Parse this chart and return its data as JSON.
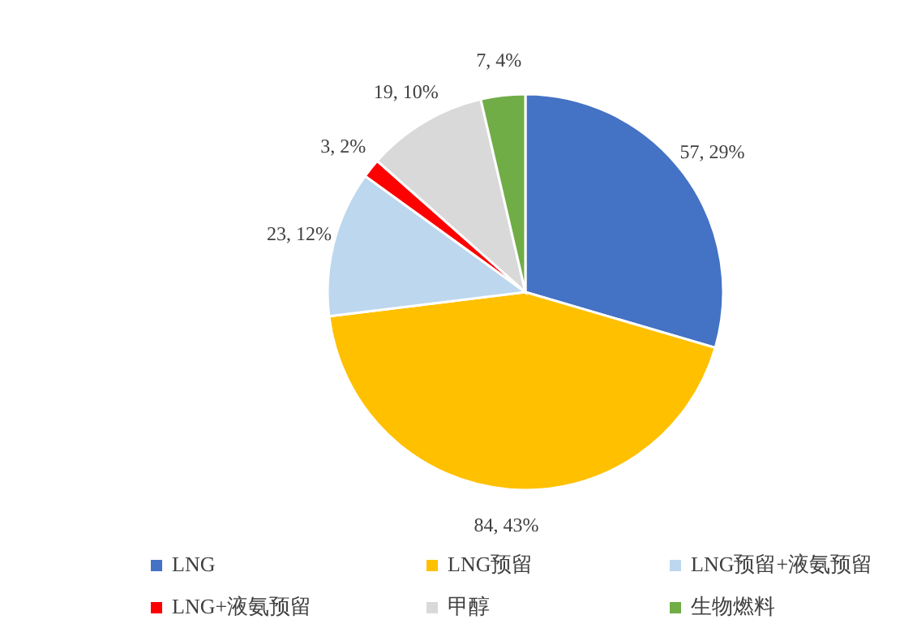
{
  "chart_data": {
    "type": "pie",
    "categories": [
      "LNG",
      "LNG预留",
      "LNG预留+液氨预留",
      "LNG+液氨预留",
      "甲醇",
      "生物燃料"
    ],
    "values": [
      57,
      84,
      23,
      3,
      19,
      7
    ],
    "colors": [
      "#4472c4",
      "#ffc000",
      "#bdd7ee",
      "#ff0000",
      "#d9d9d9",
      "#70ad47"
    ],
    "value_labels": [
      "57, 29%",
      "84, 43%",
      "23, 12%",
      "3, 2%",
      "19, 10%",
      "7, 4%"
    ],
    "legend": "bottom"
  }
}
